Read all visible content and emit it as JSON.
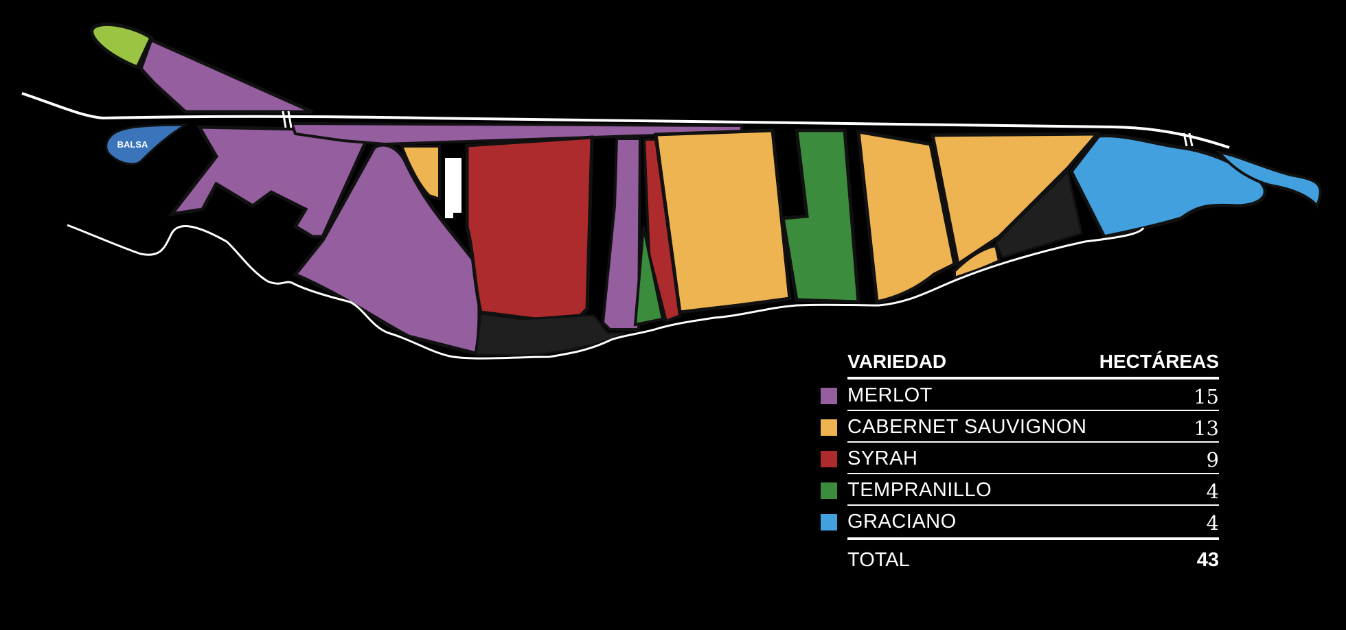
{
  "map": {
    "colors": {
      "merlot": "#955e9e",
      "cabernet_sauvignon": "#efb452",
      "syrah": "#ad2b2c",
      "tempranillo": "#3c8c3e",
      "graciano": "#42a0de",
      "balsa": "#3a74bb",
      "lime_plot": "#9cc443",
      "unplanted": "#1f1f1f",
      "road": "#ffffff",
      "background": "#000000"
    },
    "balsa_label": "BALSA"
  },
  "legend": {
    "header_variety": "VARIEDAD",
    "header_hectares": "HECTÁREAS",
    "rows": [
      {
        "name": "MERLOT",
        "value": "15",
        "color": "#955e9e"
      },
      {
        "name": "CABERNET SAUVIGNON",
        "value": "13",
        "color": "#efb452"
      },
      {
        "name": "SYRAH",
        "value": "9",
        "color": "#ad2b2c"
      },
      {
        "name": "TEMPRANILLO",
        "value": "4",
        "color": "#3c8c3e"
      },
      {
        "name": "GRACIANO",
        "value": "4",
        "color": "#42a0de"
      }
    ],
    "total_label": "TOTAL",
    "total_value": "43"
  }
}
